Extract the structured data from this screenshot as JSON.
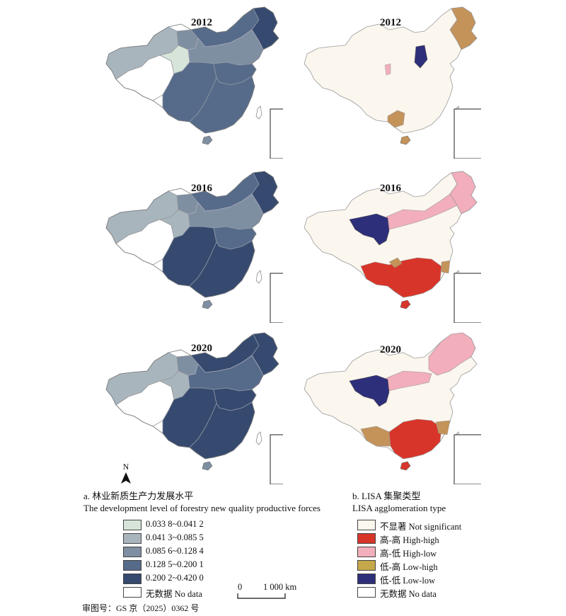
{
  "panels": {
    "a": {
      "years": [
        "2012",
        "2016",
        "2020"
      ],
      "title_cn": "a. 林业新质生产力发展水平",
      "title_en": "The development level of forestry new quality productive forces",
      "classes": [
        {
          "label": "0.033 8~0.041 2",
          "color": "#d6e4d9"
        },
        {
          "label": "0.041 3~0.085 5",
          "color": "#a9b5bd"
        },
        {
          "label": "0.085 6~0.128 4",
          "color": "#7f8fa2"
        },
        {
          "label": "0.128 5~0.200 1",
          "color": "#566b8a"
        },
        {
          "label": "0.200 2~0.420 0",
          "color": "#36496e"
        },
        {
          "label": "无数据 No data",
          "color": "#ffffff"
        }
      ]
    },
    "b": {
      "years": [
        "2012",
        "2016",
        "2020"
      ],
      "title_cn": "b. LISA 集聚类型",
      "title_en": "LISA agglomeration type",
      "classes": [
        {
          "label": "不显著 Not significant",
          "color": "#fbf6ee"
        },
        {
          "label": "高-高 High-high",
          "color": "#d8352a"
        },
        {
          "label": "高-低 High-low",
          "color": "#f2aebb"
        },
        {
          "label": "低-高 Low-high",
          "color": "#c6a84a"
        },
        {
          "label": "低-低 Low-low",
          "color": "#2e2f7a"
        },
        {
          "label": "无数据 No data",
          "color": "#ffffff"
        }
      ],
      "mapcolors": {
        "lowhigh_map": "#c4935a"
      }
    }
  },
  "north_label": "N",
  "scale_bar": {
    "start": "0",
    "end": "1 000 km"
  },
  "approval_number": "审图号：GS 京（2025）0362 号"
}
